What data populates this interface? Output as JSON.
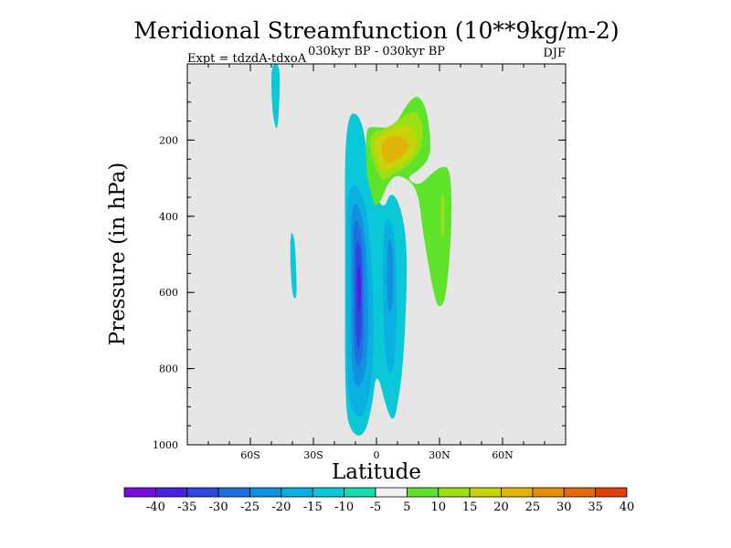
{
  "chart_data": {
    "type": "heatmap",
    "title": "Meridional Streamfunction (10**9kg/m-2)",
    "subtitle": "030kyr BP - 030kyr BP",
    "left_label": "Expt = tdzdA-tdxoA",
    "right_label": "DJF",
    "xlabel": "Latitude",
    "ylabel": "Pressure (in hPa)",
    "xlim": [
      -90,
      90
    ],
    "ylim": [
      1000,
      0
    ],
    "x_ticks": [
      {
        "value": -60,
        "label": "60S"
      },
      {
        "value": -30,
        "label": "30S"
      },
      {
        "value": 0,
        "label": "0"
      },
      {
        "value": 30,
        "label": "30N"
      },
      {
        "value": 60,
        "label": "60N"
      }
    ],
    "y_ticks": [
      {
        "value": 200,
        "label": "200"
      },
      {
        "value": 400,
        "label": "400"
      },
      {
        "value": 600,
        "label": "600"
      },
      {
        "value": 800,
        "label": "800"
      },
      {
        "value": 1000,
        "label": "1000"
      }
    ],
    "missing_color": "#e6e6e6",
    "colorbar": {
      "levels": [
        -40,
        -35,
        -30,
        -25,
        -20,
        -15,
        -10,
        -5,
        5,
        10,
        15,
        20,
        25,
        30,
        35,
        40
      ],
      "labels": [
        "-40",
        "-35",
        "-30",
        "-25",
        "-20",
        "-15",
        "-10",
        "-5",
        "5",
        "10",
        "15",
        "20",
        "25",
        "30",
        "35",
        "40"
      ],
      "colors": [
        "#7a0ae0",
        "#4a1fe0",
        "#2f46e0",
        "#1f6fe0",
        "#138fe0",
        "#0ab0e0",
        "#0ac8d8",
        "#14dcb0",
        "#f2f2f2",
        "#5ee22a",
        "#9be014",
        "#c8d40a",
        "#e2b40a",
        "#e2900a",
        "#e26a0a",
        "#e2400a"
      ]
    },
    "regions": [
      {
        "name": "southern-cell-outer",
        "level": -10,
        "points": [
          [
            -15,
            130
          ],
          [
            -7,
            130
          ],
          [
            -3,
            300
          ],
          [
            3,
            390
          ],
          [
            7,
            330
          ],
          [
            12,
            380
          ],
          [
            15,
            500
          ],
          [
            13,
            780
          ],
          [
            10,
            900
          ],
          [
            8,
            940
          ],
          [
            5,
            910
          ],
          [
            0,
            800
          ],
          [
            -2,
            900
          ],
          [
            -6,
            980
          ],
          [
            -12,
            970
          ],
          [
            -15,
            900
          ],
          [
            -15,
            500
          ]
        ]
      },
      {
        "name": "southern-cell-15",
        "level": -15,
        "points": [
          [
            -14,
            310
          ],
          [
            -6,
            330
          ],
          [
            -2,
            520
          ],
          [
            -1,
            780
          ],
          [
            -5,
            920
          ],
          [
            -10,
            930
          ],
          [
            -14,
            870
          ],
          [
            -14,
            500
          ]
        ]
      },
      {
        "name": "southern-cell-15-east",
        "level": -15,
        "points": [
          [
            3,
            420
          ],
          [
            7,
            400
          ],
          [
            10,
            520
          ],
          [
            9,
            800
          ],
          [
            5,
            820
          ],
          [
            3,
            650
          ]
        ]
      },
      {
        "name": "southern-cell-20",
        "level": -20,
        "points": [
          [
            -12,
            360
          ],
          [
            -7,
            380
          ],
          [
            -4,
            540
          ],
          [
            -4,
            780
          ],
          [
            -8,
            860
          ],
          [
            -12,
            820
          ],
          [
            -12,
            500
          ]
        ]
      },
      {
        "name": "southern-cell-20-east",
        "level": -20,
        "points": [
          [
            5,
            450
          ],
          [
            8,
            470
          ],
          [
            8,
            640
          ],
          [
            5,
            660
          ]
        ]
      },
      {
        "name": "southern-cell-25",
        "level": -25,
        "points": [
          [
            -11,
            400
          ],
          [
            -7,
            430
          ],
          [
            -6,
            560
          ],
          [
            -6,
            760
          ],
          [
            -9,
            810
          ],
          [
            -11,
            740
          ],
          [
            -11,
            520
          ]
        ]
      },
      {
        "name": "southern-cell-30",
        "level": -30,
        "points": [
          [
            -10,
            460
          ],
          [
            -7,
            480
          ],
          [
            -7,
            600
          ],
          [
            -7,
            720
          ],
          [
            -9,
            760
          ],
          [
            -10,
            690
          ],
          [
            -10,
            560
          ]
        ]
      },
      {
        "name": "southern-cell-35",
        "level": -35,
        "points": [
          [
            -9,
            520
          ],
          [
            -7.5,
            540
          ],
          [
            -7.5,
            640
          ],
          [
            -8.5,
            660
          ],
          [
            -9,
            600
          ]
        ]
      },
      {
        "name": "southern-cell-40",
        "level": -40,
        "points": [
          [
            -8.7,
            560
          ],
          [
            -7.8,
            570
          ],
          [
            -7.8,
            620
          ],
          [
            -8.5,
            630
          ]
        ]
      },
      {
        "name": "upper-southern-jet",
        "level": -10,
        "points": [
          [
            -50,
            0
          ],
          [
            -46,
            0
          ],
          [
            -46,
            80
          ],
          [
            -47,
            180
          ],
          [
            -49,
            150
          ],
          [
            -50,
            80
          ]
        ]
      },
      {
        "name": "midlat-southern-patch",
        "level": -10,
        "points": [
          [
            -41,
            440
          ],
          [
            -39,
            450
          ],
          [
            -38,
            560
          ],
          [
            -38,
            620
          ],
          [
            -40,
            610
          ],
          [
            -41,
            530
          ]
        ]
      },
      {
        "name": "northern-cell-outer",
        "level": 10,
        "points": [
          [
            -5,
            170
          ],
          [
            -2,
            165
          ],
          [
            8,
            170
          ],
          [
            15,
            100
          ],
          [
            20,
            80
          ],
          [
            24,
            120
          ],
          [
            26,
            210
          ],
          [
            25,
            250
          ],
          [
            20,
            280
          ],
          [
            14,
            300
          ],
          [
            20,
            320
          ],
          [
            24,
            300
          ],
          [
            30,
            270
          ],
          [
            35,
            270
          ],
          [
            36,
            380
          ],
          [
            35,
            500
          ],
          [
            33,
            610
          ],
          [
            31,
            640
          ],
          [
            28,
            630
          ],
          [
            22,
            440
          ],
          [
            20,
            340
          ],
          [
            15,
            300
          ],
          [
            7,
            290
          ],
          [
            0,
            390
          ],
          [
            -3,
            330
          ],
          [
            -5,
            280
          ]
        ]
      },
      {
        "name": "northern-cell-15",
        "level": 15,
        "points": [
          [
            -3,
            180
          ],
          [
            5,
            170
          ],
          [
            12,
            140
          ],
          [
            18,
            120
          ],
          [
            22,
            150
          ],
          [
            22,
            220
          ],
          [
            15,
            270
          ],
          [
            8,
            290
          ],
          [
            3,
            310
          ],
          [
            0,
            280
          ],
          [
            -3,
            230
          ]
        ]
      },
      {
        "name": "northern-cell-20",
        "level": 20,
        "points": [
          [
            -1,
            195
          ],
          [
            5,
            175
          ],
          [
            12,
            160
          ],
          [
            18,
            170
          ],
          [
            20,
            210
          ],
          [
            16,
            250
          ],
          [
            9,
            270
          ],
          [
            3,
            290
          ],
          [
            1,
            260
          ],
          [
            -1,
            230
          ]
        ]
      },
      {
        "name": "northern-cell-25",
        "level": 25,
        "points": [
          [
            2,
            205
          ],
          [
            8,
            185
          ],
          [
            14,
            195
          ],
          [
            16,
            220
          ],
          [
            12,
            245
          ],
          [
            6,
            265
          ],
          [
            3,
            250
          ]
        ]
      },
      {
        "name": "northern-inner-patch",
        "level": 15,
        "points": [
          [
            31,
            330
          ],
          [
            32.5,
            350
          ],
          [
            32.5,
            450
          ],
          [
            31,
            460
          ],
          [
            30.5,
            400
          ]
        ]
      }
    ]
  }
}
